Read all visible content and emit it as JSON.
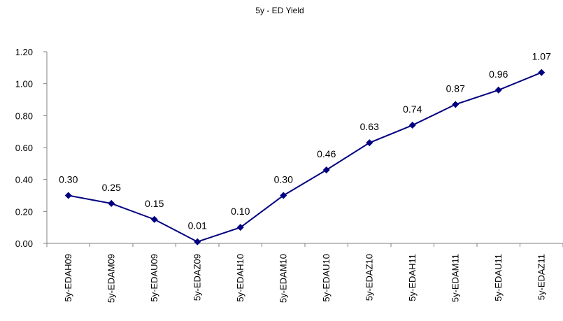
{
  "chart_data": {
    "type": "line",
    "title": "5y - ED Yield",
    "xlabel": "",
    "ylabel": "",
    "categories": [
      "5y-EDAH09",
      "5y-EDAM09",
      "5y-EDAU09",
      "5y-EDAZ09",
      "5y-EDAH10",
      "5y-EDAM10",
      "5y-EDAU10",
      "5y-EDAZ10",
      "5y-EDAH11",
      "5y-EDAM11",
      "5y-EDAU11",
      "5y-EDAZ11"
    ],
    "values": [
      0.3,
      0.25,
      0.15,
      0.01,
      0.1,
      0.3,
      0.46,
      0.63,
      0.74,
      0.87,
      0.96,
      1.07
    ],
    "data_labels": [
      "0.30",
      "0.25",
      "0.15",
      "0.01",
      "0.10",
      "0.30",
      "0.46",
      "0.63",
      "0.74",
      "0.87",
      "0.96",
      "1.07"
    ],
    "ylim": [
      0,
      1.2
    ],
    "yticks": [
      0.0,
      0.2,
      0.4,
      0.6,
      0.8,
      1.0,
      1.2
    ],
    "ytick_labels": [
      "0.00",
      "0.20",
      "0.40",
      "0.60",
      "0.80",
      "1.00",
      "1.20"
    ],
    "grid": false,
    "legend": "none",
    "colors": {
      "line": "#000080",
      "marker": "#000080",
      "axis": "#808080"
    }
  }
}
